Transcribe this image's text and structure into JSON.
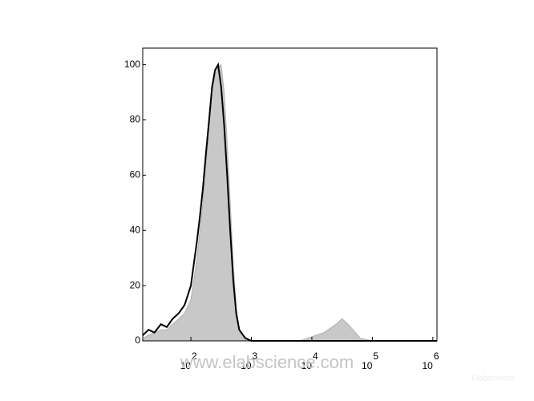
{
  "chart_data": {
    "type": "histogram-overlay",
    "x": [
      16,
      20,
      25,
      32,
      40,
      50,
      63,
      79,
      100,
      112,
      126,
      141,
      158,
      178,
      200,
      224,
      251,
      282,
      316,
      355,
      398,
      447,
      501,
      562,
      631,
      794,
      1000,
      3162,
      6310,
      15849,
      25119,
      31623,
      39811,
      63096,
      100000,
      1170000
    ],
    "series": [
      {
        "color": "#c8c8c8",
        "values": [
          1,
          2,
          3,
          4,
          4,
          6,
          8,
          10,
          15,
          22,
          30,
          40,
          50,
          63,
          78,
          90,
          96,
          99,
          100,
          90,
          72,
          50,
          28,
          12,
          4,
          1,
          0,
          0,
          0,
          3,
          6,
          8,
          6,
          1,
          0,
          0
        ]
      },
      {
        "color": "#000000",
        "values": [
          2,
          4,
          3,
          6,
          5,
          8,
          10,
          13,
          20,
          28,
          36,
          45,
          55,
          68,
          80,
          92,
          98,
          100,
          92,
          78,
          60,
          40,
          22,
          10,
          4,
          1,
          0,
          0,
          0,
          0,
          0,
          0,
          0,
          0,
          0,
          0
        ]
      }
    ],
    "xlim": [
      16,
      1170000
    ],
    "log_x": true,
    "xticks": [
      {
        "value": 100,
        "label": "10",
        "sup": "2"
      },
      {
        "value": 1000,
        "label": "10",
        "sup": "3"
      },
      {
        "value": 10000,
        "label": "10",
        "sup": "4"
      },
      {
        "value": 100000,
        "label": "10",
        "sup": "5"
      },
      {
        "value": 1000000,
        "label": "10",
        "sup": "6"
      }
    ],
    "ylim": [
      0,
      106
    ],
    "yticks": [
      0,
      20,
      40,
      60,
      80,
      100
    ],
    "watermark": "www.elabscience.com",
    "corner_mark": "Elabscience"
  }
}
